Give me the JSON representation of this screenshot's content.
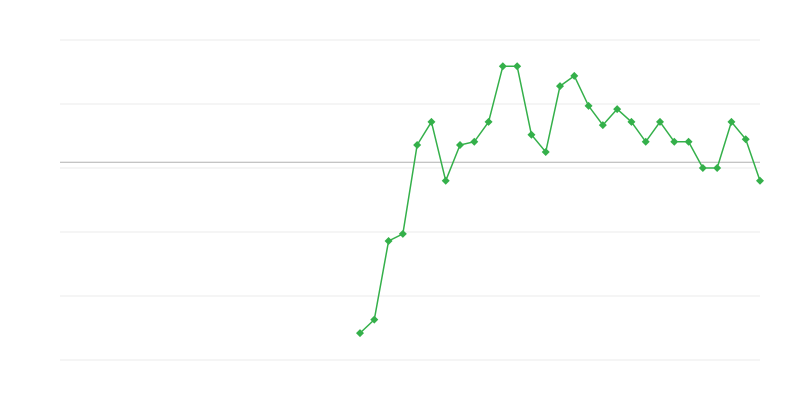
{
  "chart_data": {
    "type": "line",
    "title": "",
    "xlabel": "",
    "ylabel": "",
    "x": [
      21,
      22,
      23,
      24,
      25,
      26,
      27,
      28,
      29,
      30,
      31,
      32,
      33,
      34,
      35,
      36,
      37,
      38,
      39,
      40,
      41,
      42,
      43,
      44,
      45,
      46,
      47,
      48,
      49
    ],
    "xlim": [
      0,
      49
    ],
    "series": [
      {
        "color": "#34b04a",
        "marker": "diamond",
        "values": [
          0.42,
          0.63,
          1.86,
          1.97,
          3.36,
          3.72,
          2.8,
          3.36,
          3.41,
          3.72,
          4.59,
          4.59,
          3.52,
          3.25,
          4.28,
          4.44,
          3.97,
          3.67,
          3.92,
          3.72,
          3.41,
          3.72,
          3.41,
          3.41,
          3.0,
          3.0,
          3.72,
          3.45,
          2.8
        ]
      }
    ],
    "ylim": [
      0,
      5
    ],
    "gridlines_y": [
      0,
      1,
      2,
      3,
      4,
      5
    ],
    "reference_line_y": 3.09,
    "grid": true,
    "legend": "none",
    "colors": {
      "grid": "#ebebeb",
      "reference": "#b0b0b0",
      "line": "#34b04a"
    }
  }
}
